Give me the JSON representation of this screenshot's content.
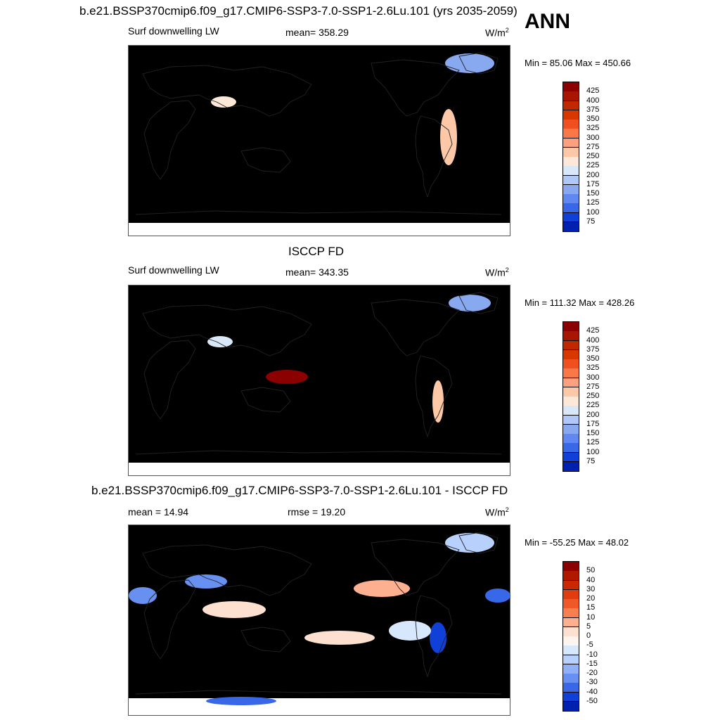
{
  "header": {
    "title": "b.e21.BSSP370cmip6.f09_g17.CMIP6-SSP3-7.0-SSP1-2.6Lu.101 (yrs 2035-2059)",
    "season": "ANN"
  },
  "panels": [
    {
      "id": "model",
      "title": "",
      "variable": "Surf downwelling LW",
      "stat_label": "mean= 358.29",
      "units_base": "W/m",
      "units_exp": "2",
      "minmax": "Min =  85.06 Max = 450.66",
      "colorbar_labels": [
        "425",
        "400",
        "375",
        "350",
        "325",
        "300",
        "275",
        "250",
        "225",
        "200",
        "175",
        "150",
        "125",
        "100",
        "75"
      ]
    },
    {
      "id": "obs",
      "title": "ISCCP FD",
      "variable": "Surf downwelling LW",
      "stat_label": "mean= 343.35",
      "units_base": "W/m",
      "units_exp": "2",
      "minmax": "Min = 111.32 Max = 428.26",
      "colorbar_labels": [
        "425",
        "400",
        "375",
        "350",
        "325",
        "300",
        "275",
        "250",
        "225",
        "200",
        "175",
        "150",
        "125",
        "100",
        "75"
      ]
    },
    {
      "id": "diff",
      "title": "b.e21.BSSP370cmip6.f09_g17.CMIP6-SSP3-7.0-SSP1-2.6Lu.101 - ISCCP FD",
      "variable": "mean =  14.94",
      "stat_label": "rmse =  19.20",
      "units_base": "W/m",
      "units_exp": "2",
      "minmax": "Min = -55.25 Max =  48.02",
      "colorbar_labels": [
        "50",
        "40",
        "30",
        "20",
        "15",
        "10",
        "5",
        "0",
        "-5",
        "-10",
        "-15",
        "-20",
        "-30",
        "-40",
        "-50"
      ]
    }
  ],
  "colors": {
    "abs_scale": [
      "#8b0000",
      "#a81500",
      "#c02800",
      "#d83800",
      "#f05020",
      "#f87848",
      "#fca080",
      "#fcc8a8",
      "#fde8d8",
      "#d8e8f8",
      "#b0c8f8",
      "#88a8f0",
      "#6088f0",
      "#3868e8",
      "#1040d8",
      "#0020b0",
      "#000080"
    ],
    "diff_scale": [
      "#8b0000",
      "#b01800",
      "#cc2800",
      "#e03c10",
      "#f05828",
      "#f88050",
      "#fcb090",
      "#fde0d0",
      "#fff4ee",
      "#d8e8fc",
      "#b8d0fc",
      "#90b0f8",
      "#6890f0",
      "#3868e8",
      "#1040d8",
      "#0020b0",
      "#000080"
    ]
  }
}
